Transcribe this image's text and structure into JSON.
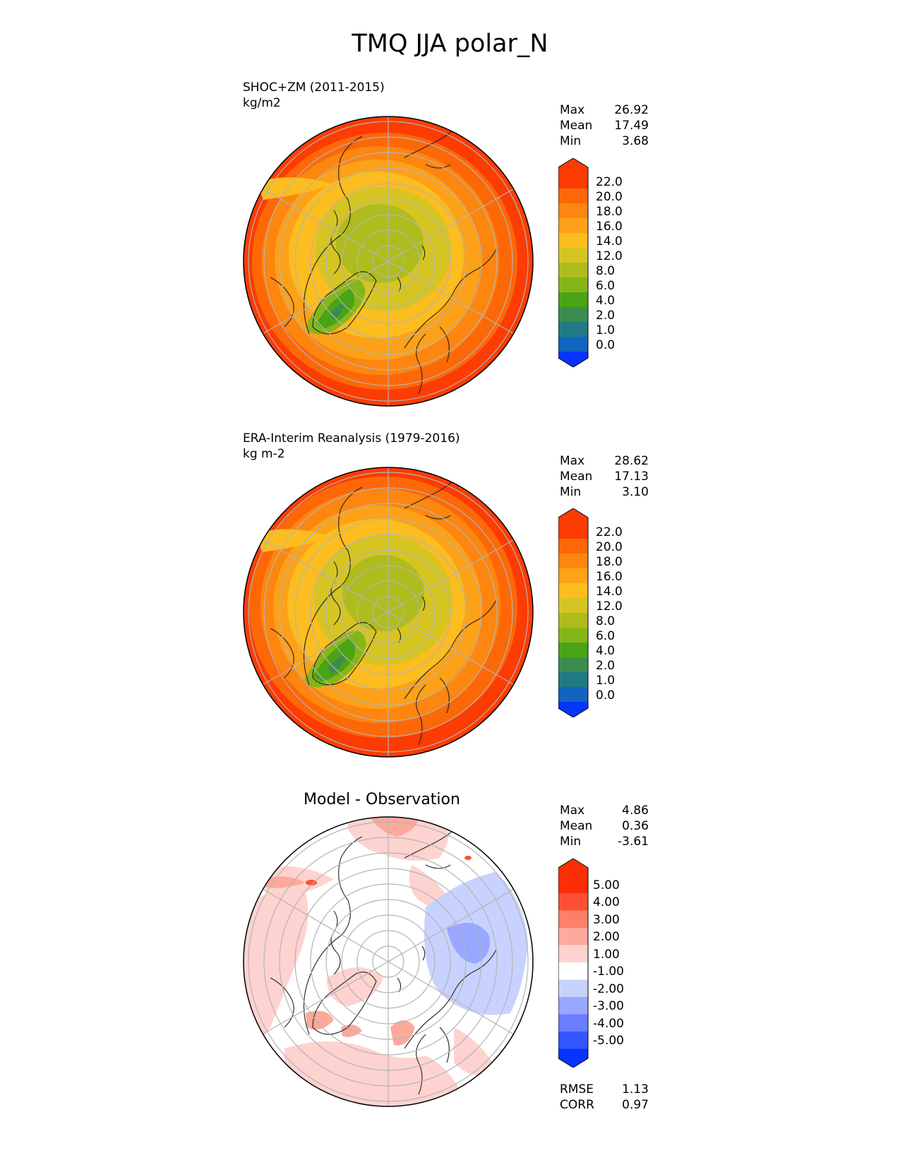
{
  "title": "TMQ JJA polar_N",
  "colors": {
    "tmq": [
      "#0534ff",
      "#1164c0",
      "#207a85",
      "#3b8d4f",
      "#4aa416",
      "#86b51a",
      "#aebc1e",
      "#d6c423",
      "#fbbd1f",
      "#fda119",
      "#fc860f",
      "#fc6808",
      "#fc3c02"
    ],
    "diff": [
      "#0634ff",
      "#3356ff",
      "#6a7eff",
      "#98a7ff",
      "#c8d2ff",
      "#ffffff",
      "#fed3cf",
      "#fda99b",
      "#fc7f67",
      "#fb5034",
      "#fb2e06"
    ],
    "coastline": "#222222",
    "grid": "#b4b4b4"
  },
  "panels": [
    {
      "id": "test",
      "label": "SHOC+ZM (2011-2015)",
      "units": "kg/m2",
      "stats": [
        {
          "name": "Max",
          "value": "26.92"
        },
        {
          "name": "Mean",
          "value": "17.49"
        },
        {
          "name": "Min",
          "value": "3.68"
        }
      ],
      "colorbar_labels": [
        "22.0",
        "20.0",
        "18.0",
        "16.0",
        "14.0",
        "12.0",
        "8.0",
        "6.0",
        "4.0",
        "2.0",
        "1.0",
        "0.0"
      ]
    },
    {
      "id": "reference",
      "label": "ERA-Interim Reanalysis (1979-2016)",
      "units": "kg m-2",
      "stats": [
        {
          "name": "Max",
          "value": "28.62"
        },
        {
          "name": "Mean",
          "value": "17.13"
        },
        {
          "name": "Min",
          "value": "3.10"
        }
      ],
      "colorbar_labels": [
        "22.0",
        "20.0",
        "18.0",
        "16.0",
        "14.0",
        "12.0",
        "8.0",
        "6.0",
        "4.0",
        "2.0",
        "1.0",
        "0.0"
      ]
    },
    {
      "id": "difference",
      "title": "Model - Observation",
      "stats": [
        {
          "name": "Max",
          "value": "4.86"
        },
        {
          "name": "Mean",
          "value": "0.36"
        },
        {
          "name": "Min",
          "value": "-3.61"
        }
      ],
      "colorbar_labels": [
        "5.00",
        "4.00",
        "3.00",
        "2.00",
        "1.00",
        "-1.00",
        "-2.00",
        "-3.00",
        "-4.00",
        "-5.00"
      ],
      "extra_stats": [
        {
          "name": "RMSE",
          "value": "1.13"
        },
        {
          "name": "CORR",
          "value": "0.97"
        }
      ]
    }
  ]
}
